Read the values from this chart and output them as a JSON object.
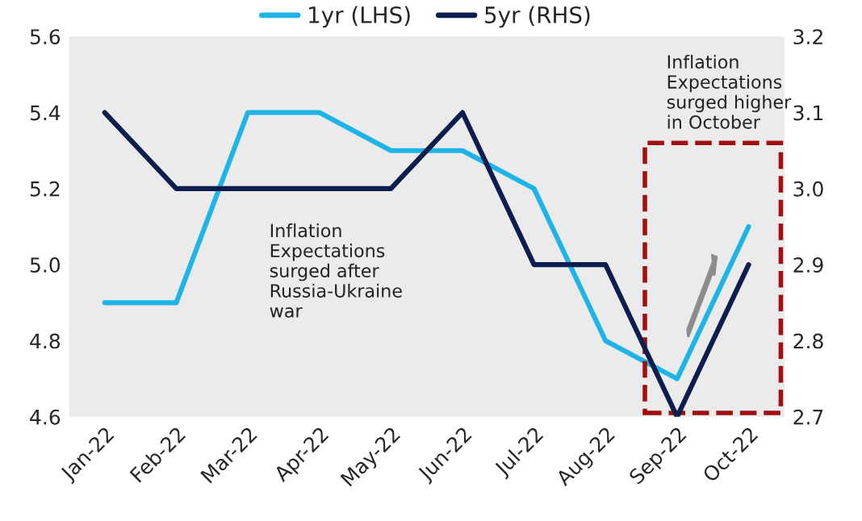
{
  "chart_data": {
    "type": "line",
    "categories": [
      "Jan-22",
      "Feb-22",
      "Mar-22",
      "Apr-22",
      "May-22",
      "Jun-22",
      "Jul-22",
      "Aug-22",
      "Sep-22",
      "Oct-22"
    ],
    "series": [
      {
        "name": "1yr (LHS)",
        "color": "#1eb4e6",
        "values": [
          4.9,
          4.9,
          5.4,
          5.4,
          5.3,
          5.3,
          5.2,
          4.8,
          4.7,
          5.1
        ]
      },
      {
        "name": "5yr (RHS)",
        "color": "#0b1e4e",
        "axis": "y2",
        "values": [
          3.1,
          3.0,
          3.0,
          3.0,
          3.0,
          3.1,
          2.9,
          2.9,
          2.7,
          2.9
        ]
      }
    ],
    "ylim": [
      4.6,
      5.6
    ],
    "yticks": [
      {
        "value": 4.6,
        "label": "4.6"
      },
      {
        "value": 4.8,
        "label": "4.8"
      },
      {
        "value": 5.0,
        "label": "5.0"
      },
      {
        "value": 5.2,
        "label": "5.2"
      },
      {
        "value": 5.4,
        "label": "5.4"
      },
      {
        "value": 5.6,
        "label": "5.6"
      }
    ],
    "y2lim": [
      2.7,
      3.2
    ],
    "y2ticks": [
      {
        "value": 2.7,
        "label": "2.7"
      },
      {
        "value": 2.8,
        "label": "2.8"
      },
      {
        "value": 2.9,
        "label": "2.9"
      },
      {
        "value": 3.0,
        "label": "3.0"
      },
      {
        "value": 3.1,
        "label": "3.1"
      },
      {
        "value": 3.2,
        "label": "3.2"
      }
    ],
    "annotations": [
      "Inflation\nExpectations\nsurged after\nRussia-Ukraine\nwar",
      "Inflation\nExpectations\nsurged higher\nin October"
    ],
    "legend": "top",
    "grid": false,
    "marker": "none",
    "line_style": "solid"
  }
}
